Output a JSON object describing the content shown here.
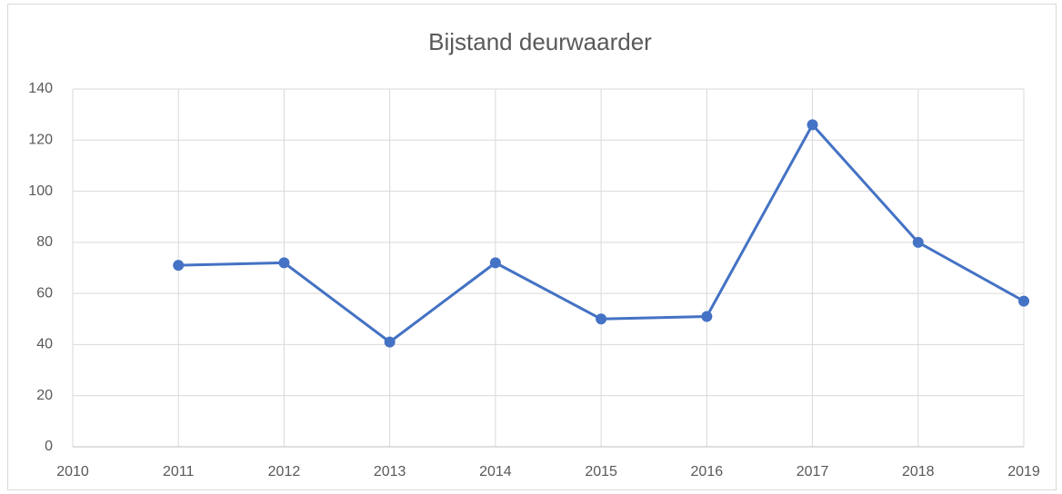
{
  "chart_data": {
    "type": "line",
    "title": "Bijstand deurwaarder",
    "x": [
      2011,
      2012,
      2013,
      2014,
      2015,
      2016,
      2017,
      2018,
      2019
    ],
    "series": [
      {
        "name": "Bijstand deurwaarder",
        "color": "#4472c4",
        "values": [
          71,
          72,
          41,
          72,
          50,
          51,
          126,
          80,
          57
        ]
      }
    ],
    "xlim": [
      2010,
      2019
    ],
    "xticks": [
      2010,
      2011,
      2012,
      2013,
      2014,
      2015,
      2016,
      2017,
      2018,
      2019
    ],
    "ylim": [
      0,
      140
    ],
    "yticks": [
      0,
      20,
      40,
      60,
      80,
      100,
      120,
      140
    ],
    "grid": true
  }
}
